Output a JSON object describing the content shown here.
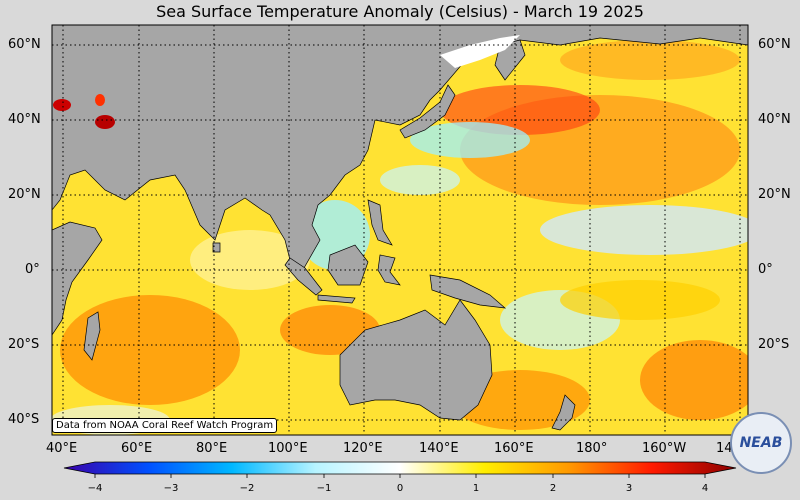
{
  "title": "Sea Surface Temperature Anomaly (Celsius) - March 19 2025",
  "credit": "Data from NOAA Coral Reef Watch Program",
  "logo_text": "NEAB",
  "lat_labels": [
    "60°N",
    "40°N",
    "20°N",
    "0°",
    "20°S",
    "40°S"
  ],
  "lon_labels": [
    "40°E",
    "60°E",
    "80°E",
    "100°E",
    "120°E",
    "140°E",
    "160°E",
    "180°",
    "160°W",
    "140°"
  ],
  "colorbar": {
    "ticks": [
      "−4",
      "−3",
      "−2",
      "−1",
      "0",
      "1",
      "2",
      "3",
      "4"
    ],
    "colors": [
      "#3a00a8",
      "#0050ff",
      "#00b8ff",
      "#b8f4ff",
      "#ffffff",
      "#ffee00",
      "#ff9a00",
      "#ff1a00",
      "#8a0000"
    ]
  }
}
